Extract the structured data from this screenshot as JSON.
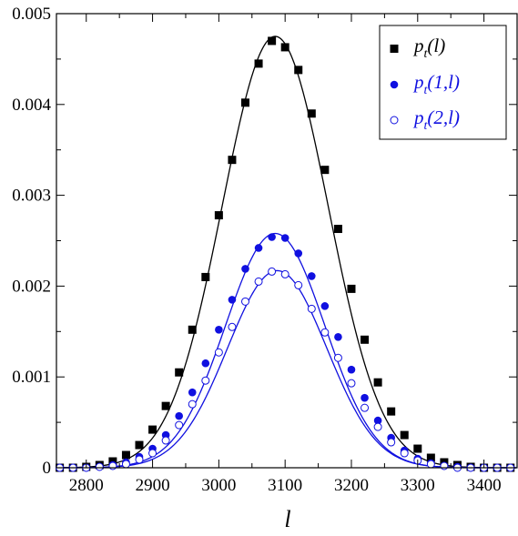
{
  "chart_data": {
    "type": "scatter",
    "xlabel": "l",
    "ylabel": "",
    "xlim": [
      2755,
      3450
    ],
    "ylim": [
      0,
      0.005
    ],
    "xticks": [
      2800,
      2900,
      3000,
      3100,
      3200,
      3300,
      3400
    ],
    "xtick_labels": [
      "2800",
      "2900",
      "3000",
      "3100",
      "3200",
      "3300",
      "3400"
    ],
    "yticks": [
      0,
      0.001,
      0.002,
      0.003,
      0.004,
      0.005
    ],
    "ytick_labels": [
      "0",
      "0.001",
      "0.002",
      "0.003",
      "0.004",
      "0.005"
    ],
    "grid": false,
    "legend_position": "top-right",
    "x": [
      2760,
      2780,
      2800,
      2820,
      2840,
      2860,
      2880,
      2900,
      2920,
      2940,
      2960,
      2980,
      3000,
      3020,
      3040,
      3060,
      3080,
      3100,
      3120,
      3140,
      3160,
      3180,
      3200,
      3220,
      3240,
      3260,
      3280,
      3300,
      3320,
      3340,
      3360,
      3380,
      3400,
      3420,
      3440
    ],
    "series": [
      {
        "name": "p_t(l)",
        "legend": {
          "main": "p",
          "sub": "t",
          "args": "(l)"
        },
        "marker": "square",
        "color": "#000000",
        "values": [
          0.0,
          0.0,
          1e-05,
          3e-05,
          7e-05,
          0.00014,
          0.00025,
          0.00042,
          0.00068,
          0.00105,
          0.00152,
          0.0021,
          0.00278,
          0.00339,
          0.00402,
          0.00445,
          0.0047,
          0.00463,
          0.00438,
          0.0039,
          0.00328,
          0.00263,
          0.00197,
          0.00141,
          0.00094,
          0.00062,
          0.00036,
          0.00021,
          0.00011,
          6e-05,
          3e-05,
          1e-05,
          0.0,
          0.0,
          0.0
        ],
        "curve_fit": {
          "amplitude": 0.00475,
          "center": 3085,
          "sigma": 80
        }
      },
      {
        "name": "p_t(1,l)",
        "legend": {
          "main": "p",
          "sub": "t",
          "args": "(1,l)"
        },
        "marker": "filled-circle",
        "color": "#1010e0",
        "values": [
          0.0,
          0.0,
          0.0,
          1e-05,
          3e-05,
          6e-05,
          0.00012,
          0.00021,
          0.00036,
          0.00057,
          0.00083,
          0.00115,
          0.00152,
          0.00185,
          0.00219,
          0.00242,
          0.00254,
          0.00253,
          0.00236,
          0.00211,
          0.00178,
          0.00144,
          0.00108,
          0.00077,
          0.00052,
          0.00033,
          0.00019,
          0.0001,
          5e-05,
          2e-05,
          1e-05,
          0.0,
          0.0,
          0.0,
          0.0
        ],
        "curve_fit": {
          "amplitude": 0.00258,
          "center": 3085,
          "sigma": 75
        }
      },
      {
        "name": "p_t(2,l)",
        "legend": {
          "main": "p",
          "sub": "t",
          "args": "(2,l)"
        },
        "marker": "open-circle",
        "color": "#1010e0",
        "values": [
          0.0,
          0.0,
          0.0,
          1e-05,
          2e-05,
          4e-05,
          9e-05,
          0.00016,
          0.0003,
          0.00047,
          0.0007,
          0.00096,
          0.00127,
          0.00155,
          0.00183,
          0.00205,
          0.00216,
          0.00213,
          0.00201,
          0.00175,
          0.00149,
          0.00121,
          0.00093,
          0.00066,
          0.00045,
          0.00028,
          0.00016,
          8e-05,
          4e-05,
          2e-05,
          0.0,
          0.0,
          0.0,
          0.0,
          0.0
        ],
        "curve_fit": {
          "amplitude": 0.00217,
          "center": 3088,
          "sigma": 75
        }
      }
    ]
  }
}
